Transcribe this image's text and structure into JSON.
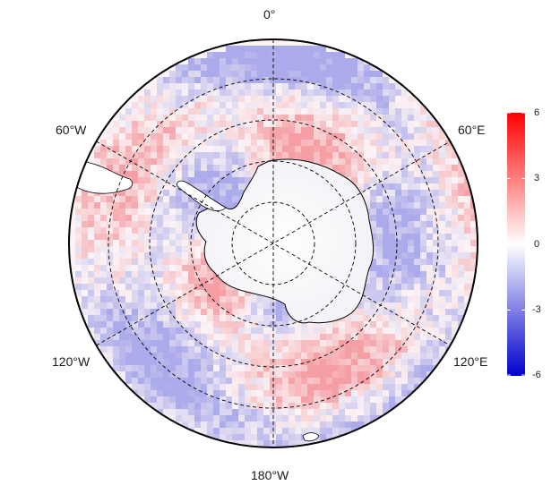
{
  "map": {
    "projection": "south-polar-stereographic",
    "longitude_labels": {
      "top": "0°",
      "upper_right": "60°E",
      "lower_right": "120°E",
      "bottom": "180°W",
      "lower_left": "120°W",
      "upper_left": "60°W"
    },
    "graticule": "dashed",
    "land_color": "#ffffff",
    "coastline_color": "#000000"
  },
  "colorbar": {
    "ticks": [
      "6",
      "3",
      "0",
      "-3",
      "-6"
    ],
    "range": [
      -6,
      6
    ],
    "colors": {
      "max": "#ff0000",
      "mid": "#ffffff",
      "min": "#0000cc"
    }
  }
}
